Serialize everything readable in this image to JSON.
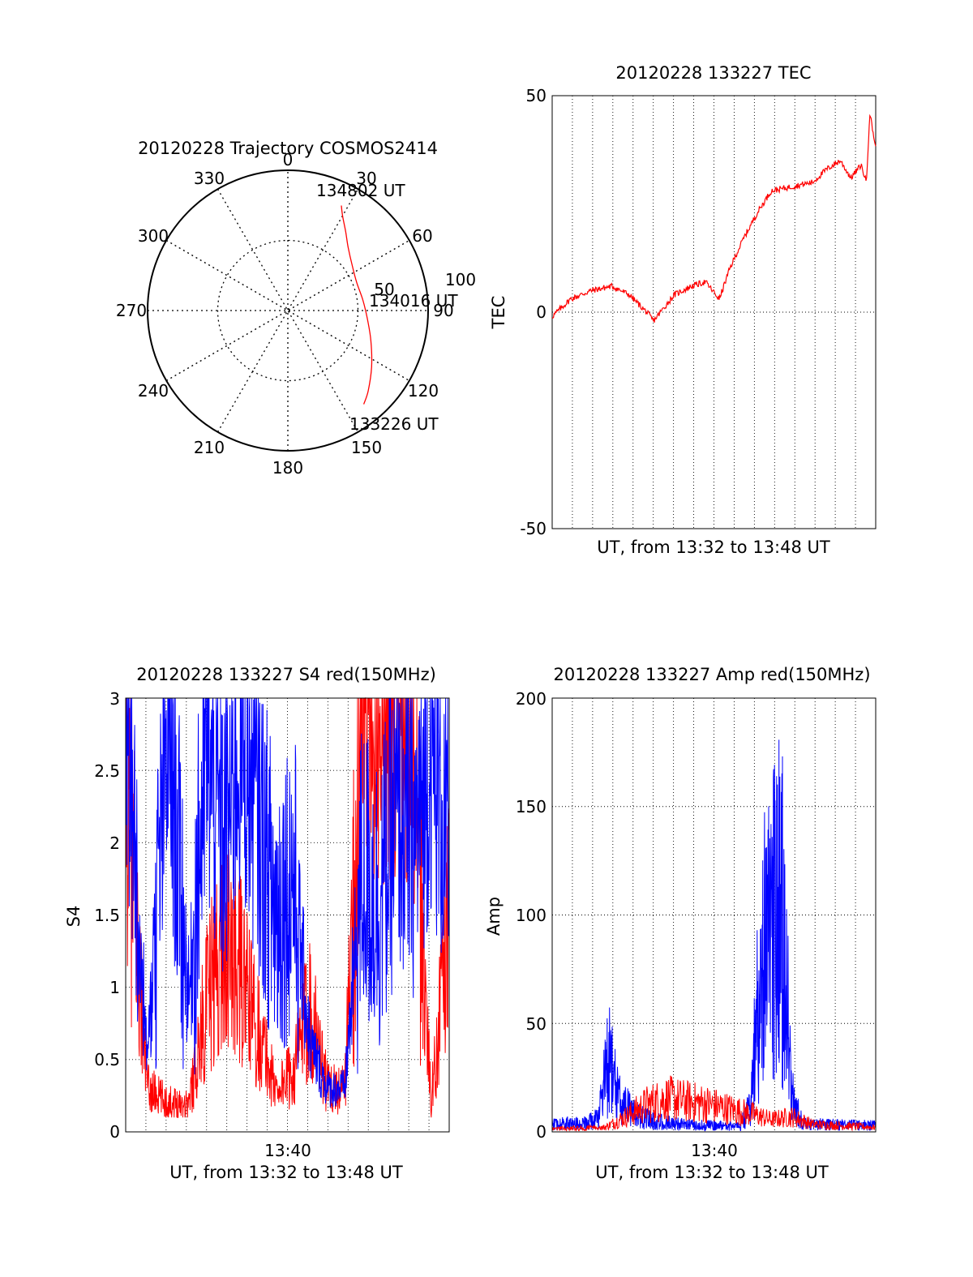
{
  "chart_data": [
    {
      "type": "polar",
      "title": "20120228 Trajectory COSMOS2414",
      "azimuth_labels": [
        "0",
        "30",
        "60",
        "90",
        "120",
        "150",
        "180",
        "210",
        "240",
        "270",
        "300",
        "330"
      ],
      "radial_labels": [
        "50",
        "100"
      ],
      "rlim": [
        0,
        100
      ],
      "grid": true,
      "series": [
        {
          "color": "#ff0000",
          "points": [
            {
              "az": 27,
              "r": 84
            },
            {
              "az": 30,
              "r": 78
            },
            {
              "az": 36,
              "r": 70
            },
            {
              "az": 44,
              "r": 62
            },
            {
              "az": 55,
              "r": 56
            },
            {
              "az": 68,
              "r": 53
            },
            {
              "az": 82,
              "r": 54
            },
            {
              "az": 96,
              "r": 57
            },
            {
              "az": 110,
              "r": 63
            },
            {
              "az": 124,
              "r": 72
            },
            {
              "az": 135,
              "r": 81
            },
            {
              "az": 141,
              "r": 86
            }
          ]
        }
      ],
      "annotations": [
        {
          "text": "134802 UT",
          "az": 27,
          "r": 84
        },
        {
          "text": "134016 UT",
          "az": 82,
          "r": 54
        },
        {
          "text": "133226 UT",
          "az": 141,
          "r": 86
        }
      ]
    },
    {
      "type": "line",
      "title": "20120228 133227 TEC",
      "xlabel": "UT, from 13:32 to 13:48 UT",
      "ylabel": "TEC",
      "xlim": [
        "13:32:27",
        "13:48:02"
      ],
      "ylim": [
        -50,
        50
      ],
      "yticks": [
        "-50",
        "0",
        "50"
      ],
      "grid": true,
      "series": [
        {
          "color": "#ff0000",
          "x": [
            "13:32:27",
            "13:33:20",
            "13:34:20",
            "13:35:20",
            "13:36:10",
            "13:37:00",
            "13:37:20",
            "13:37:40",
            "13:38:20",
            "13:39:10",
            "13:39:50",
            "13:40:30",
            "13:41:00",
            "13:41:40",
            "13:42:20",
            "13:43:00",
            "13:44:00",
            "13:45:00",
            "13:45:40",
            "13:46:20",
            "13:46:50",
            "13:47:20",
            "13:47:35",
            "13:47:45",
            "13:48:02"
          ],
          "y": [
            -1,
            3,
            5,
            6,
            4,
            0,
            -2,
            0,
            4,
            6,
            7,
            3,
            10,
            17,
            23,
            28,
            29,
            30,
            33,
            35,
            31,
            34,
            30,
            46,
            38
          ]
        }
      ]
    },
    {
      "type": "line",
      "title": "20120228 133227 S4 red(150MHz)",
      "xlabel": "UT, from 13:32 to 13:48 UT",
      "ylabel": "S4",
      "xlim": [
        "13:32:27",
        "13:48:02"
      ],
      "ylim": [
        0,
        3
      ],
      "xticks": [
        "13:40"
      ],
      "yticks": [
        "0",
        "0.5",
        "1",
        "1.5",
        "2",
        "2.5",
        "3"
      ],
      "grid": true,
      "series": [
        {
          "color": "#ff0000",
          "x": [
            "13:32:27",
            "13:33:30",
            "13:34:30",
            "13:35:30",
            "13:36:20",
            "13:37:10",
            "13:38:00",
            "13:38:50",
            "13:39:40",
            "13:40:30",
            "13:41:20",
            "13:42:10",
            "13:43:00",
            "13:43:50",
            "13:44:40",
            "13:45:30",
            "13:46:20",
            "13:47:10",
            "13:48:02"
          ],
          "y": [
            2.5,
            0.3,
            0.2,
            0.2,
            0.9,
            1.3,
            1.1,
            0.7,
            0.3,
            0.4,
            0.9,
            0.3,
            0.3,
            2.8,
            2.9,
            2.9,
            2.5,
            0.2,
            1.5
          ]
        },
        {
          "color": "#0000ff",
          "x": [
            "13:32:27",
            "13:33:30",
            "13:34:30",
            "13:35:30",
            "13:36:20",
            "13:37:10",
            "13:38:00",
            "13:38:50",
            "13:39:40",
            "13:40:30",
            "13:41:20",
            "13:42:10",
            "13:43:00",
            "13:43:50",
            "13:44:40",
            "13:45:30",
            "13:46:20",
            "13:47:10",
            "13:48:02"
          ],
          "y": [
            2.8,
            0.5,
            2.8,
            0.9,
            2.6,
            2.0,
            2.7,
            2.2,
            1.5,
            1.8,
            0.6,
            0.3,
            0.3,
            1.8,
            1.6,
            2.2,
            2.0,
            2.6,
            1.9
          ]
        }
      ]
    },
    {
      "type": "line",
      "title": "20120228 133227 Amp red(150MHz)",
      "xlabel": "UT, from 13:32 to 13:48 UT",
      "ylabel": "Amp",
      "xlim": [
        "13:32:27",
        "13:48:02"
      ],
      "ylim": [
        0,
        200
      ],
      "xticks": [
        "13:40"
      ],
      "yticks": [
        "0",
        "50",
        "100",
        "150",
        "200"
      ],
      "grid": true,
      "series": [
        {
          "color": "#ff0000",
          "x": [
            "13:32:27",
            "13:35:00",
            "13:36:00",
            "13:37:00",
            "13:38:00",
            "13:39:00",
            "13:40:00",
            "13:41:00",
            "13:42:00",
            "13:43:00",
            "13:44:00",
            "13:45:00",
            "13:48:02"
          ],
          "y": [
            2,
            3,
            10,
            18,
            22,
            20,
            18,
            15,
            12,
            8,
            10,
            5,
            3
          ]
        },
        {
          "color": "#0000ff",
          "x": [
            "13:32:27",
            "13:34:00",
            "13:34:40",
            "13:35:10",
            "13:35:40",
            "13:36:30",
            "13:37:30",
            "13:38:30",
            "13:39:30",
            "13:40:30",
            "13:41:30",
            "13:42:00",
            "13:42:30",
            "13:43:00",
            "13:43:30",
            "13:44:00",
            "13:44:30",
            "13:48:02"
          ],
          "y": [
            6,
            7,
            10,
            55,
            25,
            12,
            8,
            6,
            5,
            5,
            4,
            20,
            120,
            165,
            170,
            30,
            6,
            5
          ]
        }
      ]
    }
  ]
}
